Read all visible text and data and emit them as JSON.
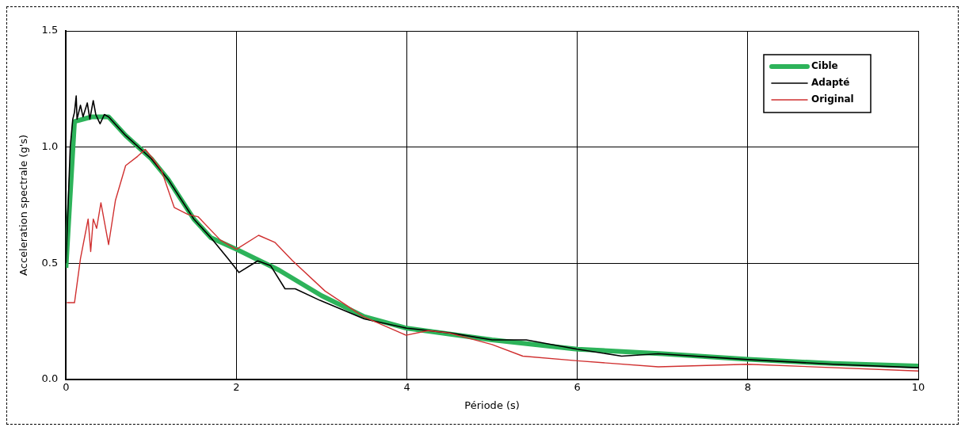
{
  "chart_data": {
    "type": "line",
    "xlabel": "Période (s)",
    "ylabel": "Acceleration spectrale (g's)",
    "xlim": [
      0,
      10
    ],
    "xticks": [
      0,
      2,
      4,
      6,
      8,
      10
    ],
    "ylim": [
      0,
      1.5
    ],
    "yticks": [
      {
        "value": 0,
        "label": "0.0"
      },
      {
        "value": 0.5,
        "label": "0.5"
      },
      {
        "value": 1,
        "label": "1.0"
      },
      {
        "value": 1.5,
        "label": "1.5"
      }
    ],
    "grid": true,
    "legend": "top right",
    "marker": "none",
    "line_style": "solid",
    "series": [
      {
        "name": "Cible",
        "color": "#2db35a",
        "x": [
          0,
          0.1,
          0.3,
          0.5,
          0.7,
          1.0,
          1.2,
          1.5,
          1.7,
          2.0,
          2.5,
          3.0,
          3.5,
          4,
          5,
          6,
          7,
          8,
          9,
          10
        ],
        "values": [
          0.48,
          1.11,
          1.13,
          1.13,
          1.05,
          0.95,
          0.86,
          0.69,
          0.61,
          0.56,
          0.47,
          0.36,
          0.27,
          0.22,
          0.17,
          0.13,
          0.11,
          0.086,
          0.068,
          0.057
        ]
      },
      {
        "name": "Adapté",
        "color": "#000000",
        "x": [
          0,
          0.05,
          0.08,
          0.1,
          0.12,
          0.13,
          0.17,
          0.2,
          0.25,
          0.28,
          0.32,
          0.35,
          0.4,
          0.45,
          0.5,
          0.7,
          1.0,
          1.2,
          1.5,
          1.7,
          1.9,
          2.03,
          2.25,
          2.4,
          2.57,
          2.69,
          2.98,
          3.5,
          4,
          4.5,
          5,
          5.19,
          5.4,
          6,
          6.52,
          6.95,
          8,
          9,
          10
        ],
        "values": [
          0.5,
          1.0,
          1.12,
          1.15,
          1.22,
          1.12,
          1.18,
          1.13,
          1.19,
          1.12,
          1.2,
          1.14,
          1.1,
          1.14,
          1.13,
          1.05,
          0.95,
          0.86,
          0.69,
          0.61,
          0.52,
          0.46,
          0.51,
          0.49,
          0.39,
          0.39,
          0.34,
          0.26,
          0.22,
          0.2,
          0.17,
          0.17,
          0.17,
          0.13,
          0.1,
          0.11,
          0.085,
          0.065,
          0.05
        ]
      },
      {
        "name": "Original",
        "color": "#d03030",
        "x": [
          0.01,
          0.1,
          0.17,
          0.26,
          0.29,
          0.32,
          0.36,
          0.41,
          0.5,
          0.58,
          0.7,
          0.84,
          0.93,
          1.02,
          1.12,
          1.27,
          1.43,
          1.55,
          1.81,
          2.0,
          2.26,
          2.45,
          2.66,
          3.04,
          3.49,
          3.99,
          4.25,
          4.49,
          5.0,
          5.36,
          6.0,
          6.95,
          8.0,
          10
        ],
        "values": [
          0.33,
          0.33,
          0.52,
          0.69,
          0.55,
          0.69,
          0.65,
          0.76,
          0.58,
          0.77,
          0.92,
          0.96,
          0.99,
          0.95,
          0.9,
          0.74,
          0.71,
          0.7,
          0.6,
          0.56,
          0.62,
          0.59,
          0.51,
          0.38,
          0.27,
          0.19,
          0.21,
          0.2,
          0.15,
          0.1,
          0.08,
          0.054,
          0.065,
          0.036
        ]
      }
    ]
  }
}
